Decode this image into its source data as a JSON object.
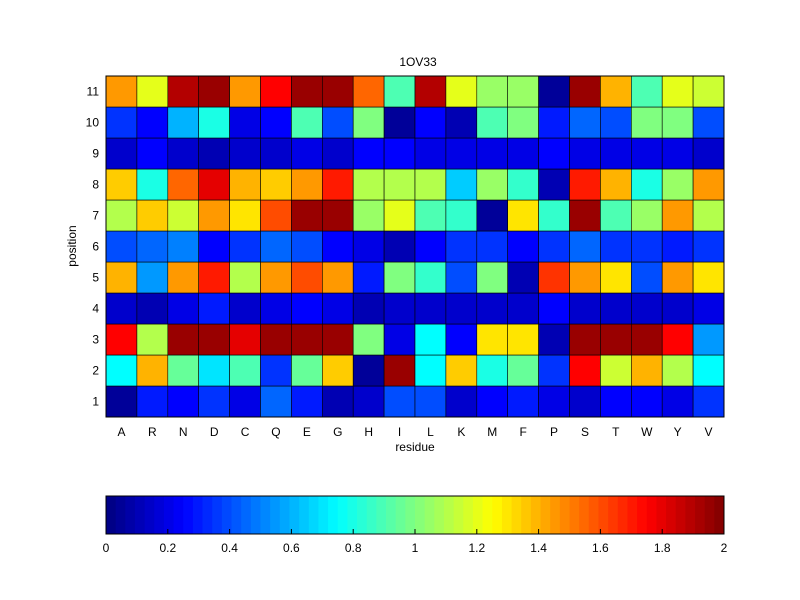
{
  "chart_data": {
    "type": "heatmap",
    "title": "1OV33",
    "xlabel": "residue",
    "ylabel": "position",
    "x_categories": [
      "A",
      "R",
      "N",
      "D",
      "C",
      "Q",
      "E",
      "G",
      "H",
      "I",
      "L",
      "K",
      "M",
      "F",
      "P",
      "S",
      "T",
      "W",
      "Y",
      "V"
    ],
    "y_categories": [
      "1",
      "2",
      "3",
      "4",
      "5",
      "6",
      "7",
      "8",
      "9",
      "10",
      "11"
    ],
    "values": [
      [
        0.05,
        0.3,
        0.25,
        0.35,
        0.2,
        0.45,
        0.3,
        0.1,
        0.15,
        0.4,
        0.4,
        0.15,
        0.25,
        0.3,
        0.2,
        0.15,
        0.25,
        0.25,
        0.2,
        0.35
      ],
      [
        0.75,
        1.4,
        0.95,
        0.7,
        0.9,
        0.35,
        0.95,
        1.35,
        0.05,
        1.95,
        0.75,
        1.35,
        0.8,
        0.95,
        0.35,
        1.75,
        1.15,
        1.4,
        1.1,
        0.75
      ],
      [
        1.75,
        1.1,
        1.95,
        1.95,
        1.8,
        1.95,
        1.95,
        1.95,
        1.0,
        0.2,
        0.75,
        0.25,
        1.3,
        1.3,
        0.1,
        1.95,
        1.95,
        1.95,
        1.75,
        0.55
      ],
      [
        0.15,
        0.1,
        0.2,
        0.3,
        0.15,
        0.2,
        0.25,
        0.2,
        0.1,
        0.15,
        0.15,
        0.15,
        0.15,
        0.15,
        0.25,
        0.15,
        0.15,
        0.15,
        0.15,
        0.2
      ],
      [
        1.4,
        0.55,
        1.45,
        1.7,
        1.1,
        1.45,
        1.6,
        1.45,
        0.3,
        1.0,
        0.85,
        0.4,
        1.0,
        0.1,
        1.65,
        1.45,
        1.3,
        0.4,
        1.45,
        1.3
      ],
      [
        0.4,
        0.45,
        0.5,
        0.25,
        0.35,
        0.45,
        0.4,
        0.25,
        0.2,
        0.1,
        0.25,
        0.35,
        0.35,
        0.25,
        0.35,
        0.45,
        0.35,
        0.35,
        0.3,
        0.35
      ],
      [
        1.1,
        1.35,
        1.15,
        1.45,
        1.3,
        1.6,
        1.95,
        1.95,
        1.05,
        1.2,
        0.9,
        0.85,
        0.05,
        1.3,
        0.85,
        1.95,
        0.9,
        1.05,
        1.45,
        1.1
      ],
      [
        1.35,
        0.8,
        1.55,
        1.8,
        1.4,
        1.35,
        1.45,
        1.7,
        1.1,
        1.1,
        1.1,
        0.65,
        1.05,
        0.85,
        0.1,
        1.7,
        1.4,
        0.8,
        1.05,
        1.45
      ],
      [
        0.15,
        0.25,
        0.15,
        0.1,
        0.15,
        0.15,
        0.2,
        0.15,
        0.25,
        0.25,
        0.2,
        0.2,
        0.2,
        0.2,
        0.25,
        0.2,
        0.2,
        0.2,
        0.2,
        0.15
      ],
      [
        0.35,
        0.25,
        0.6,
        0.8,
        0.2,
        0.25,
        0.9,
        0.4,
        1.0,
        0.05,
        0.25,
        0.1,
        0.9,
        1.0,
        0.3,
        0.45,
        0.4,
        1.0,
        1.0,
        0.4
      ],
      [
        1.45,
        1.2,
        1.9,
        1.95,
        1.45,
        1.75,
        1.95,
        1.95,
        1.55,
        0.9,
        1.9,
        1.2,
        1.05,
        1.05,
        0.05,
        1.95,
        1.4,
        0.9,
        1.2,
        1.15
      ]
    ],
    "colorbar": {
      "range": [
        0,
        2
      ],
      "ticks": [
        "0",
        "0.2",
        "0.4",
        "0.6",
        "0.8",
        "1",
        "1.2",
        "1.4",
        "1.6",
        "1.8",
        "2"
      ],
      "colormap": "jet"
    }
  }
}
